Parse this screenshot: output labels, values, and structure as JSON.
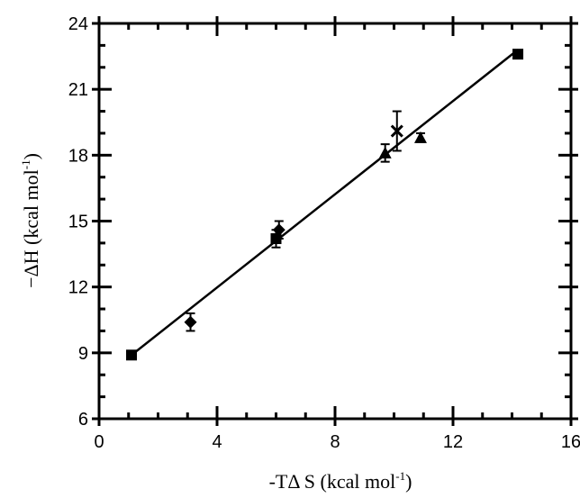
{
  "chart_data": {
    "type": "scatter",
    "xlabel": "-TΔ S (kcal mol",
    "xlabel_sup": "-1",
    "xlabel_end": ")",
    "ylabel": "−ΔH (kcal mol",
    "ylabel_sup": "-1",
    "ylabel_end": ")",
    "xlim": [
      0,
      16
    ],
    "ylim": [
      6,
      24
    ],
    "xticks": [
      0,
      4,
      8,
      12,
      16
    ],
    "yticks": [
      6,
      9,
      12,
      15,
      18,
      21,
      24
    ],
    "xtick_labels": [
      "0",
      "4",
      "8",
      "12",
      "16"
    ],
    "ytick_labels": [
      "6",
      "9",
      "12",
      "15",
      "18",
      "21",
      "24"
    ],
    "grid": false,
    "series": [
      {
        "marker": "square",
        "points": [
          {
            "x": 1.1,
            "y": 8.9
          },
          {
            "x": 6.0,
            "y": 14.2,
            "err": 0.4
          },
          {
            "x": 14.2,
            "y": 22.6
          }
        ]
      },
      {
        "marker": "diamond",
        "points": [
          {
            "x": 3.1,
            "y": 10.4,
            "err": 0.4
          },
          {
            "x": 6.1,
            "y": 14.6,
            "err": 0.4
          }
        ]
      },
      {
        "marker": "triangle",
        "points": [
          {
            "x": 9.7,
            "y": 18.1,
            "err": 0.4
          },
          {
            "x": 10.9,
            "y": 18.8,
            "err": 0.2
          }
        ]
      },
      {
        "marker": "x",
        "points": [
          {
            "x": 10.1,
            "y": 19.1,
            "err": 0.9
          }
        ]
      }
    ],
    "fit_line": {
      "x": [
        1.1,
        14.2
      ],
      "y": [
        8.9,
        22.8
      ]
    }
  }
}
